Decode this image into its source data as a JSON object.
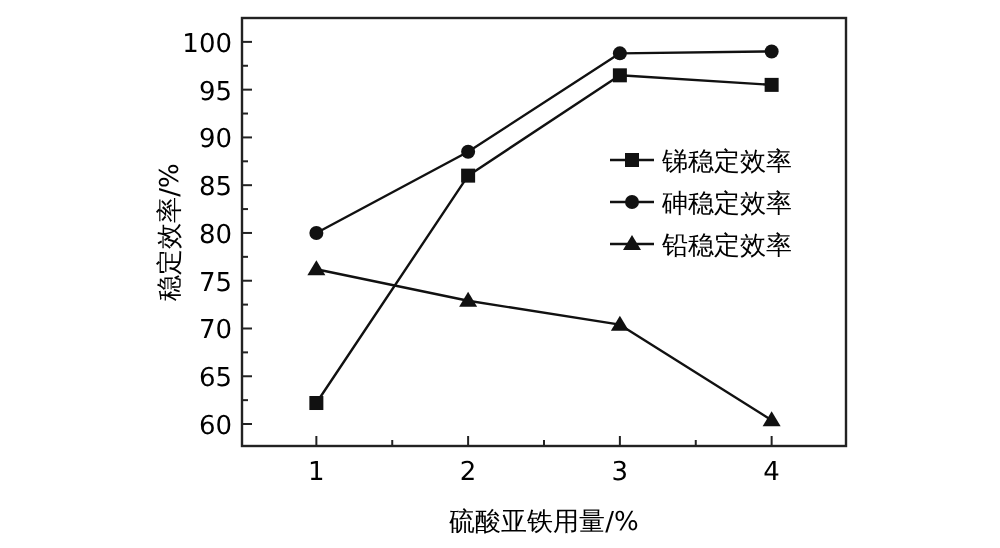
{
  "chart_data": {
    "type": "line",
    "xlabel": "硫酸亚铁用量/%",
    "ylabel": "稳定效率/%",
    "x": [
      1,
      2,
      3,
      4
    ],
    "series": [
      {
        "name": "锑稳定效率",
        "color": "#111111",
        "marker": "square",
        "values": [
          62.2,
          86,
          96.5,
          95.5
        ]
      },
      {
        "name": "砷稳定效率",
        "color": "#111111",
        "marker": "circle",
        "values": [
          80,
          88.5,
          98.8,
          99
        ]
      },
      {
        "name": "铅稳定效率",
        "color": "#111111",
        "marker": "triangle",
        "values": [
          76.2,
          72.9,
          70.4,
          60.4
        ]
      }
    ],
    "xlim": [
      0.51,
      4.49
    ],
    "xticks": [
      1,
      {
        "value": 1.5,
        "label": null
      },
      2,
      {
        "value": 2.5,
        "label": null
      },
      3,
      {
        "value": 3.5,
        "label": null
      },
      4
    ],
    "ylim": [
      57.7,
      102.5
    ],
    "yticks": [
      60,
      {
        "value": 62.5,
        "label": null
      },
      65,
      {
        "value": 67.5,
        "label": null
      },
      70,
      {
        "value": 72.5,
        "label": null
      },
      75,
      {
        "value": 77.5,
        "label": null
      },
      80,
      {
        "value": 82.5,
        "label": null
      },
      85,
      {
        "value": 87.5,
        "label": null
      },
      90,
      {
        "value": 92.5,
        "label": null
      },
      95,
      {
        "value": 97.5,
        "label": null
      },
      100
    ],
    "grid": false,
    "legend": "right",
    "line_style": "solid"
  }
}
